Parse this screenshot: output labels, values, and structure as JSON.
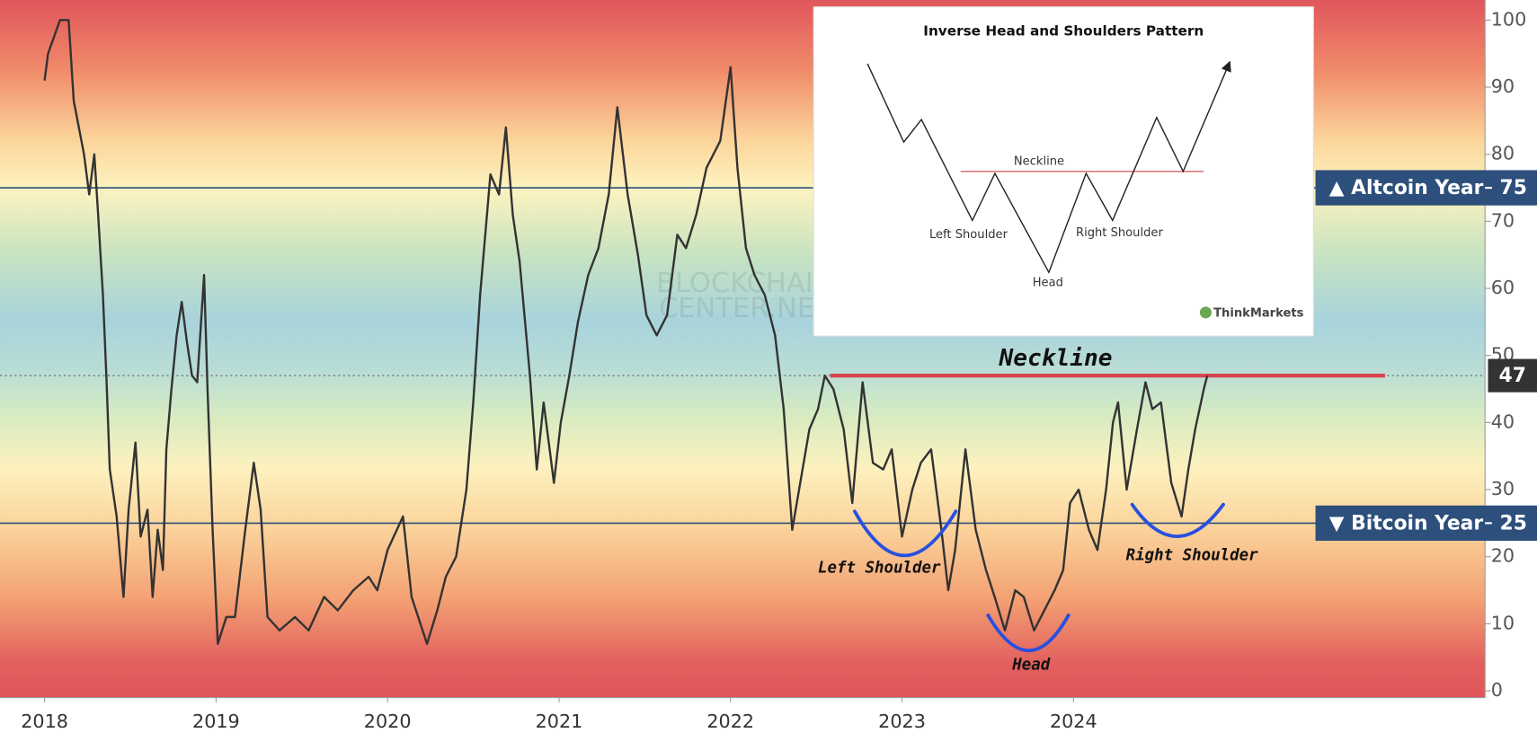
{
  "chart_data": {
    "type": "line",
    "xlim": [
      2017.74,
      2026.4
    ],
    "xticks": [
      2018,
      2019,
      2020,
      2021,
      2022,
      2023,
      2024
    ],
    "ylim": [
      -1,
      103
    ],
    "yticks": [
      0,
      10,
      20,
      30,
      40,
      50,
      60,
      70,
      80,
      90,
      100
    ],
    "series": [
      {
        "color": "#333333",
        "x": [
          2018.0,
          2018.02,
          2018.09,
          2018.14,
          2018.17,
          2018.23,
          2018.26,
          2018.29,
          2018.31,
          2018.34,
          2018.36,
          2018.38,
          2018.42,
          2018.46,
          2018.49,
          2018.53,
          2018.56,
          2018.6,
          2018.63,
          2018.66,
          2018.69,
          2018.71,
          2018.74,
          2018.77,
          2018.8,
          2018.83,
          2018.86,
          2018.89,
          2018.93,
          2018.95,
          2018.98,
          2019.01,
          2019.06,
          2019.11,
          2019.17,
          2019.22,
          2019.26,
          2019.3,
          2019.37,
          2019.46,
          2019.54,
          2019.63,
          2019.71,
          2019.8,
          2019.89,
          2019.94,
          2020.0,
          2020.09,
          2020.14,
          2020.23,
          2020.29,
          2020.34,
          2020.4,
          2020.46,
          2020.5,
          2020.54,
          2020.6,
          2020.65,
          2020.69,
          2020.73,
          2020.77,
          2020.83,
          2020.87,
          2020.91,
          2020.97,
          2021.01,
          2021.06,
          2021.11,
          2021.17,
          2021.23,
          2021.29,
          2021.34,
          2021.4,
          2021.46,
          2021.51,
          2021.57,
          2021.63,
          2021.69,
          2021.74,
          2021.8,
          2021.86,
          2021.94,
          2022.0,
          2022.04,
          2022.09,
          2022.14,
          2022.2,
          2022.26,
          2022.31,
          2022.36,
          2022.4,
          2022.46,
          2022.51,
          2022.55,
          2022.6,
          2022.66,
          2022.71,
          2022.77,
          2022.83,
          2022.89,
          2022.94,
          2023.0,
          2023.06,
          2023.11,
          2023.17,
          2023.23,
          2023.27,
          2023.31,
          2023.37,
          2023.43,
          2023.49,
          2023.54,
          2023.6,
          2023.66,
          2023.71,
          2023.77,
          2023.83,
          2023.89,
          2023.94,
          2023.98,
          2024.03,
          2024.09,
          2024.14,
          2024.19,
          2024.23,
          2024.26,
          2024.31,
          2024.37,
          2024.42,
          2024.46,
          2024.51,
          2024.57,
          2024.63,
          2024.67,
          2024.71,
          2024.76,
          2024.78
        ],
        "values": [
          91,
          95,
          100,
          100,
          88,
          80,
          74,
          80,
          72,
          59,
          47,
          33,
          26,
          14,
          27,
          37,
          23,
          27,
          14,
          24,
          18,
          36,
          45,
          53,
          58,
          52,
          47,
          46,
          62,
          45,
          24,
          7,
          11,
          11,
          24,
          34,
          27,
          11,
          9,
          11,
          9,
          14,
          12,
          15,
          17,
          15,
          21,
          26,
          14,
          7,
          12,
          17,
          20,
          30,
          43,
          59,
          77,
          74,
          84,
          71,
          64,
          47,
          33,
          43,
          31,
          40,
          47,
          55,
          62,
          66,
          74,
          87,
          74,
          65,
          56,
          53,
          56,
          68,
          66,
          71,
          78,
          82,
          93,
          78,
          66,
          62,
          59,
          53,
          42,
          24,
          30,
          39,
          42,
          47,
          45,
          39,
          28,
          46,
          34,
          33,
          36,
          23,
          30,
          34,
          36,
          24,
          15,
          21,
          36,
          24,
          18,
          14,
          9,
          15,
          14,
          9,
          12,
          15,
          18,
          28,
          30,
          24,
          21,
          30,
          40,
          43,
          30,
          39,
          46,
          42,
          43,
          31,
          26,
          33,
          39,
          45,
          47
        ]
      }
    ],
    "hlines": [
      {
        "value": 75,
        "label": "▲ Altcoin Year",
        "color": "#2d4f7c"
      },
      {
        "value": 25,
        "label": "▼ Bitcoin Year",
        "color": "#2d4f7c"
      }
    ],
    "neckline": {
      "value": 47,
      "label": "Neckline",
      "color": "#d9434e"
    },
    "annotations": {
      "left": "Left Shoulder",
      "head": "Head",
      "right": "Right Shoulder"
    },
    "watermark": [
      "BLOCKCHAIN",
      "CENTER.NET"
    ],
    "inset": {
      "title": "Inverse Head and Shoulders Pattern",
      "neckline": "Neckline",
      "left": "Left Shoulder",
      "head": "Head",
      "right": "Right Shoulder",
      "brand": "ThinkMarkets"
    }
  }
}
